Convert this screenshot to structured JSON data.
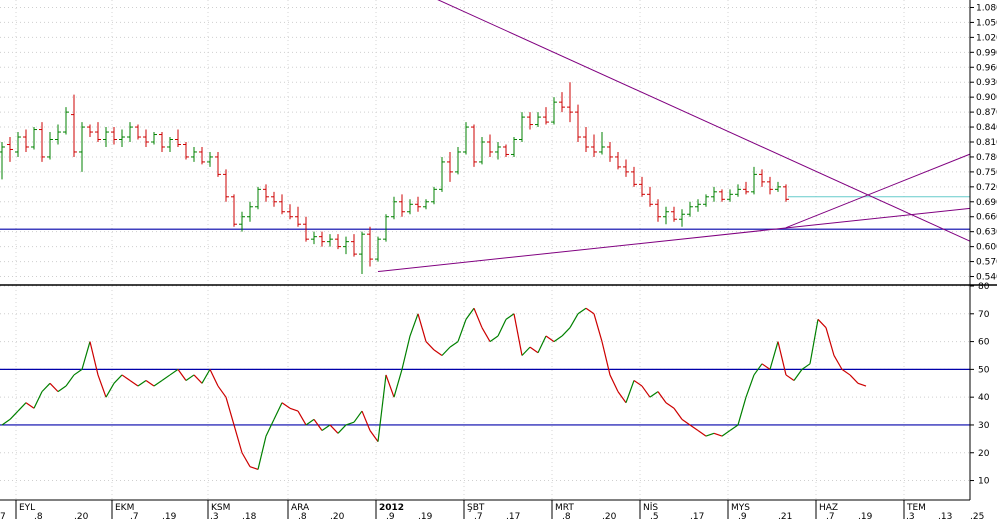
{
  "chart_data": [
    {
      "type": "ohlc",
      "panel": "price",
      "ylim": [
        0.525,
        1.095
      ],
      "ytick_labels": [
        "1.080",
        "1.050",
        "1.020",
        "0.990",
        "0.960",
        "0.930",
        "0.900",
        "0.870",
        "0.840",
        "0.810",
        "0.780",
        "0.750",
        "0.720",
        "0.690",
        "0.660",
        "0.630",
        "0.600",
        "0.570",
        "0.540"
      ],
      "series_colors": {
        "up": "#008000",
        "down": "#cc0000"
      },
      "bars": [
        {
          "o": 0.79,
          "h": 0.81,
          "l": 0.735,
          "c": 0.8
        },
        {
          "o": 0.805,
          "h": 0.82,
          "l": 0.77,
          "c": 0.795
        },
        {
          "o": 0.79,
          "h": 0.83,
          "l": 0.78,
          "c": 0.82
        },
        {
          "o": 0.82,
          "h": 0.835,
          "l": 0.79,
          "c": 0.8
        },
        {
          "o": 0.8,
          "h": 0.84,
          "l": 0.795,
          "c": 0.835
        },
        {
          "o": 0.835,
          "h": 0.85,
          "l": 0.77,
          "c": 0.78
        },
        {
          "o": 0.78,
          "h": 0.83,
          "l": 0.775,
          "c": 0.815
        },
        {
          "o": 0.815,
          "h": 0.845,
          "l": 0.805,
          "c": 0.83
        },
        {
          "o": 0.83,
          "h": 0.88,
          "l": 0.825,
          "c": 0.87
        },
        {
          "o": 0.865,
          "h": 0.905,
          "l": 0.78,
          "c": 0.79
        },
        {
          "o": 0.79,
          "h": 0.85,
          "l": 0.75,
          "c": 0.84
        },
        {
          "o": 0.84,
          "h": 0.845,
          "l": 0.82,
          "c": 0.83
        },
        {
          "o": 0.83,
          "h": 0.85,
          "l": 0.81,
          "c": 0.815
        },
        {
          "o": 0.815,
          "h": 0.84,
          "l": 0.8,
          "c": 0.83
        },
        {
          "o": 0.83,
          "h": 0.84,
          "l": 0.805,
          "c": 0.815
        },
        {
          "o": 0.815,
          "h": 0.835,
          "l": 0.8,
          "c": 0.82
        },
        {
          "o": 0.82,
          "h": 0.85,
          "l": 0.81,
          "c": 0.84
        },
        {
          "o": 0.84,
          "h": 0.845,
          "l": 0.815,
          "c": 0.82
        },
        {
          "o": 0.82,
          "h": 0.835,
          "l": 0.8,
          "c": 0.81
        },
        {
          "o": 0.81,
          "h": 0.83,
          "l": 0.805,
          "c": 0.825
        },
        {
          "o": 0.825,
          "h": 0.83,
          "l": 0.79,
          "c": 0.8
        },
        {
          "o": 0.8,
          "h": 0.82,
          "l": 0.79,
          "c": 0.815
        },
        {
          "o": 0.815,
          "h": 0.835,
          "l": 0.8,
          "c": 0.805
        },
        {
          "o": 0.805,
          "h": 0.81,
          "l": 0.775,
          "c": 0.78
        },
        {
          "o": 0.78,
          "h": 0.8,
          "l": 0.77,
          "c": 0.79
        },
        {
          "o": 0.79,
          "h": 0.8,
          "l": 0.765,
          "c": 0.77
        },
        {
          "o": 0.77,
          "h": 0.79,
          "l": 0.76,
          "c": 0.78
        },
        {
          "o": 0.78,
          "h": 0.79,
          "l": 0.74,
          "c": 0.745
        },
        {
          "o": 0.745,
          "h": 0.755,
          "l": 0.69,
          "c": 0.7
        },
        {
          "o": 0.7,
          "h": 0.705,
          "l": 0.64,
          "c": 0.645
        },
        {
          "o": 0.645,
          "h": 0.67,
          "l": 0.63,
          "c": 0.66
        },
        {
          "o": 0.66,
          "h": 0.69,
          "l": 0.65,
          "c": 0.68
        },
        {
          "o": 0.68,
          "h": 0.72,
          "l": 0.675,
          "c": 0.715
        },
        {
          "o": 0.715,
          "h": 0.725,
          "l": 0.69,
          "c": 0.7
        },
        {
          "o": 0.7,
          "h": 0.71,
          "l": 0.68,
          "c": 0.69
        },
        {
          "o": 0.69,
          "h": 0.705,
          "l": 0.665,
          "c": 0.67
        },
        {
          "o": 0.67,
          "h": 0.685,
          "l": 0.655,
          "c": 0.66
        },
        {
          "o": 0.66,
          "h": 0.68,
          "l": 0.64,
          "c": 0.645
        },
        {
          "o": 0.645,
          "h": 0.66,
          "l": 0.61,
          "c": 0.615
        },
        {
          "o": 0.615,
          "h": 0.63,
          "l": 0.605,
          "c": 0.62
        },
        {
          "o": 0.62,
          "h": 0.63,
          "l": 0.6,
          "c": 0.61
        },
        {
          "o": 0.61,
          "h": 0.625,
          "l": 0.6,
          "c": 0.615
        },
        {
          "o": 0.615,
          "h": 0.625,
          "l": 0.595,
          "c": 0.6
        },
        {
          "o": 0.6,
          "h": 0.62,
          "l": 0.585,
          "c": 0.61
        },
        {
          "o": 0.61,
          "h": 0.625,
          "l": 0.58,
          "c": 0.585
        },
        {
          "o": 0.585,
          "h": 0.63,
          "l": 0.545,
          "c": 0.625
        },
        {
          "o": 0.625,
          "h": 0.64,
          "l": 0.56,
          "c": 0.575
        },
        {
          "o": 0.575,
          "h": 0.62,
          "l": 0.57,
          "c": 0.615
        },
        {
          "o": 0.615,
          "h": 0.665,
          "l": 0.61,
          "c": 0.66
        },
        {
          "o": 0.66,
          "h": 0.7,
          "l": 0.655,
          "c": 0.69
        },
        {
          "o": 0.69,
          "h": 0.705,
          "l": 0.66,
          "c": 0.67
        },
        {
          "o": 0.67,
          "h": 0.695,
          "l": 0.665,
          "c": 0.685
        },
        {
          "o": 0.685,
          "h": 0.7,
          "l": 0.67,
          "c": 0.68
        },
        {
          "o": 0.68,
          "h": 0.695,
          "l": 0.675,
          "c": 0.69
        },
        {
          "o": 0.69,
          "h": 0.72,
          "l": 0.685,
          "c": 0.715
        },
        {
          "o": 0.715,
          "h": 0.78,
          "l": 0.71,
          "c": 0.77
        },
        {
          "o": 0.77,
          "h": 0.79,
          "l": 0.73,
          "c": 0.75
        },
        {
          "o": 0.75,
          "h": 0.8,
          "l": 0.745,
          "c": 0.79
        },
        {
          "o": 0.79,
          "h": 0.85,
          "l": 0.785,
          "c": 0.84
        },
        {
          "o": 0.84,
          "h": 0.845,
          "l": 0.76,
          "c": 0.77
        },
        {
          "o": 0.77,
          "h": 0.82,
          "l": 0.765,
          "c": 0.81
        },
        {
          "o": 0.81,
          "h": 0.825,
          "l": 0.78,
          "c": 0.79
        },
        {
          "o": 0.79,
          "h": 0.81,
          "l": 0.775,
          "c": 0.8
        },
        {
          "o": 0.8,
          "h": 0.805,
          "l": 0.78,
          "c": 0.785
        },
        {
          "o": 0.785,
          "h": 0.82,
          "l": 0.78,
          "c": 0.815
        },
        {
          "o": 0.815,
          "h": 0.87,
          "l": 0.81,
          "c": 0.86
        },
        {
          "o": 0.86,
          "h": 0.87,
          "l": 0.835,
          "c": 0.845
        },
        {
          "o": 0.845,
          "h": 0.87,
          "l": 0.84,
          "c": 0.86
        },
        {
          "o": 0.86,
          "h": 0.88,
          "l": 0.845,
          "c": 0.85
        },
        {
          "o": 0.85,
          "h": 0.9,
          "l": 0.845,
          "c": 0.89
        },
        {
          "o": 0.89,
          "h": 0.91,
          "l": 0.87,
          "c": 0.88
        },
        {
          "o": 0.88,
          "h": 0.93,
          "l": 0.85,
          "c": 0.87
        },
        {
          "o": 0.87,
          "h": 0.885,
          "l": 0.81,
          "c": 0.82
        },
        {
          "o": 0.82,
          "h": 0.84,
          "l": 0.79,
          "c": 0.8
        },
        {
          "o": 0.8,
          "h": 0.825,
          "l": 0.78,
          "c": 0.79
        },
        {
          "o": 0.79,
          "h": 0.83,
          "l": 0.785,
          "c": 0.8
        },
        {
          "o": 0.8,
          "h": 0.81,
          "l": 0.77,
          "c": 0.78
        },
        {
          "o": 0.78,
          "h": 0.79,
          "l": 0.755,
          "c": 0.76
        },
        {
          "o": 0.76,
          "h": 0.775,
          "l": 0.74,
          "c": 0.75
        },
        {
          "o": 0.75,
          "h": 0.76,
          "l": 0.72,
          "c": 0.725
        },
        {
          "o": 0.725,
          "h": 0.74,
          "l": 0.7,
          "c": 0.705
        },
        {
          "o": 0.705,
          "h": 0.72,
          "l": 0.68,
          "c": 0.685
        },
        {
          "o": 0.685,
          "h": 0.695,
          "l": 0.65,
          "c": 0.66
        },
        {
          "o": 0.66,
          "h": 0.68,
          "l": 0.645,
          "c": 0.67
        },
        {
          "o": 0.67,
          "h": 0.68,
          "l": 0.65,
          "c": 0.655
        },
        {
          "o": 0.655,
          "h": 0.675,
          "l": 0.64,
          "c": 0.665
        },
        {
          "o": 0.665,
          "h": 0.69,
          "l": 0.66,
          "c": 0.68
        },
        {
          "o": 0.68,
          "h": 0.695,
          "l": 0.67,
          "c": 0.685
        },
        {
          "o": 0.685,
          "h": 0.705,
          "l": 0.68,
          "c": 0.7
        },
        {
          "o": 0.7,
          "h": 0.72,
          "l": 0.69,
          "c": 0.71
        },
        {
          "o": 0.71,
          "h": 0.715,
          "l": 0.69,
          "c": 0.695
        },
        {
          "o": 0.695,
          "h": 0.715,
          "l": 0.69,
          "c": 0.705
        },
        {
          "o": 0.705,
          "h": 0.725,
          "l": 0.7,
          "c": 0.715
        },
        {
          "o": 0.715,
          "h": 0.73,
          "l": 0.705,
          "c": 0.71
        },
        {
          "o": 0.71,
          "h": 0.76,
          "l": 0.705,
          "c": 0.745
        },
        {
          "o": 0.745,
          "h": 0.755,
          "l": 0.72,
          "c": 0.73
        },
        {
          "o": 0.73,
          "h": 0.74,
          "l": 0.705,
          "c": 0.715
        },
        {
          "o": 0.715,
          "h": 0.73,
          "l": 0.71,
          "c": 0.72
        },
        {
          "o": 0.72,
          "h": 0.725,
          "l": 0.69,
          "c": 0.695
        }
      ],
      "hlines": [
        0.635
      ],
      "trendlines": [
        {
          "from": [
            52.5,
            1.11
          ],
          "to": [
            117,
            0.64
          ]
        },
        {
          "from": [
            47,
            0.55
          ],
          "to": [
            117,
            0.67
          ]
        },
        {
          "from": [
            98,
            0.638
          ],
          "to": [
            117,
            0.76
          ]
        }
      ],
      "current_level": 0.7
    },
    {
      "type": "line",
      "panel": "indicator",
      "ylim": [
        3,
        80
      ],
      "ytick_labels": [
        "80",
        "70",
        "60",
        "50",
        "40",
        "30",
        "20",
        "10"
      ],
      "series_colors": {
        "up": "#008000",
        "down": "#cc0000"
      },
      "values": [
        30,
        32,
        35,
        38,
        36,
        42,
        45,
        42,
        44,
        48,
        50,
        60,
        48,
        40,
        45,
        48,
        46,
        44,
        46,
        44,
        46,
        48,
        50,
        46,
        48,
        45,
        50,
        44,
        40,
        30,
        20,
        15,
        14,
        26,
        32,
        38,
        36,
        35,
        30,
        32,
        28,
        30,
        27,
        30,
        31,
        35,
        28,
        24,
        48,
        40,
        50,
        62,
        70,
        60,
        57,
        55,
        58,
        60,
        68,
        72,
        65,
        60,
        62,
        68,
        70,
        55,
        58,
        56,
        62,
        60,
        62,
        65,
        70,
        72,
        70,
        60,
        48,
        42,
        38,
        46,
        44,
        40,
        42,
        38,
        36,
        32,
        30,
        28,
        26,
        27,
        26,
        28,
        30,
        40,
        48,
        52,
        50,
        60,
        48,
        46,
        50,
        52,
        68,
        65,
        55,
        50,
        48,
        45,
        44
      ],
      "hlines": [
        50,
        30
      ]
    }
  ],
  "xaxis": {
    "months": [
      {
        "label": "EYL",
        "i": 2,
        "bold": false
      },
      {
        "label": "EKM",
        "i": 14,
        "bold": false
      },
      {
        "label": "KSM",
        "i": 26,
        "bold": false
      },
      {
        "label": "ARA",
        "i": 36,
        "bold": false
      },
      {
        "label": "2012",
        "i": 47,
        "bold": true
      },
      {
        "label": "ŞBT",
        "i": 58,
        "bold": false
      },
      {
        "label": "MRT",
        "i": 69,
        "bold": false
      },
      {
        "label": "NİS",
        "i": 80,
        "bold": false
      },
      {
        "label": "MYS",
        "i": 91,
        "bold": false
      },
      {
        "label": "HAZ",
        "i": 102,
        "bold": false
      },
      {
        "label": "TEM",
        "i": 113,
        "bold": false
      }
    ],
    "days": [
      {
        "label": ".8",
        "i": 4
      },
      {
        "label": ".20",
        "i": 9
      },
      {
        "label": ".7",
        "i": 16
      },
      {
        "label": ".19",
        "i": 20
      },
      {
        "label": ".3",
        "i": 26
      },
      {
        "label": ".18",
        "i": 30
      },
      {
        "label": ".8",
        "i": 37
      },
      {
        "label": ".20",
        "i": 41
      },
      {
        "label": ".9",
        "i": 48
      },
      {
        "label": ".19",
        "i": 52
      },
      {
        "label": ".7",
        "i": 59
      },
      {
        "label": ".17",
        "i": 63
      },
      {
        "label": ".8",
        "i": 70
      },
      {
        "label": ".20",
        "i": 75
      },
      {
        "label": ".5",
        "i": 81
      },
      {
        "label": ".17",
        "i": 86
      },
      {
        "label": ".9",
        "i": 92
      },
      {
        "label": ".21",
        "i": 97
      },
      {
        "label": ".7",
        "i": 103
      },
      {
        "label": ".19",
        "i": 107
      },
      {
        "label": ".3",
        "i": 113
      },
      {
        "label": ".13",
        "i": 117
      },
      {
        "label": ".25",
        "i": 121
      }
    ],
    "left_edge_label": "7"
  }
}
